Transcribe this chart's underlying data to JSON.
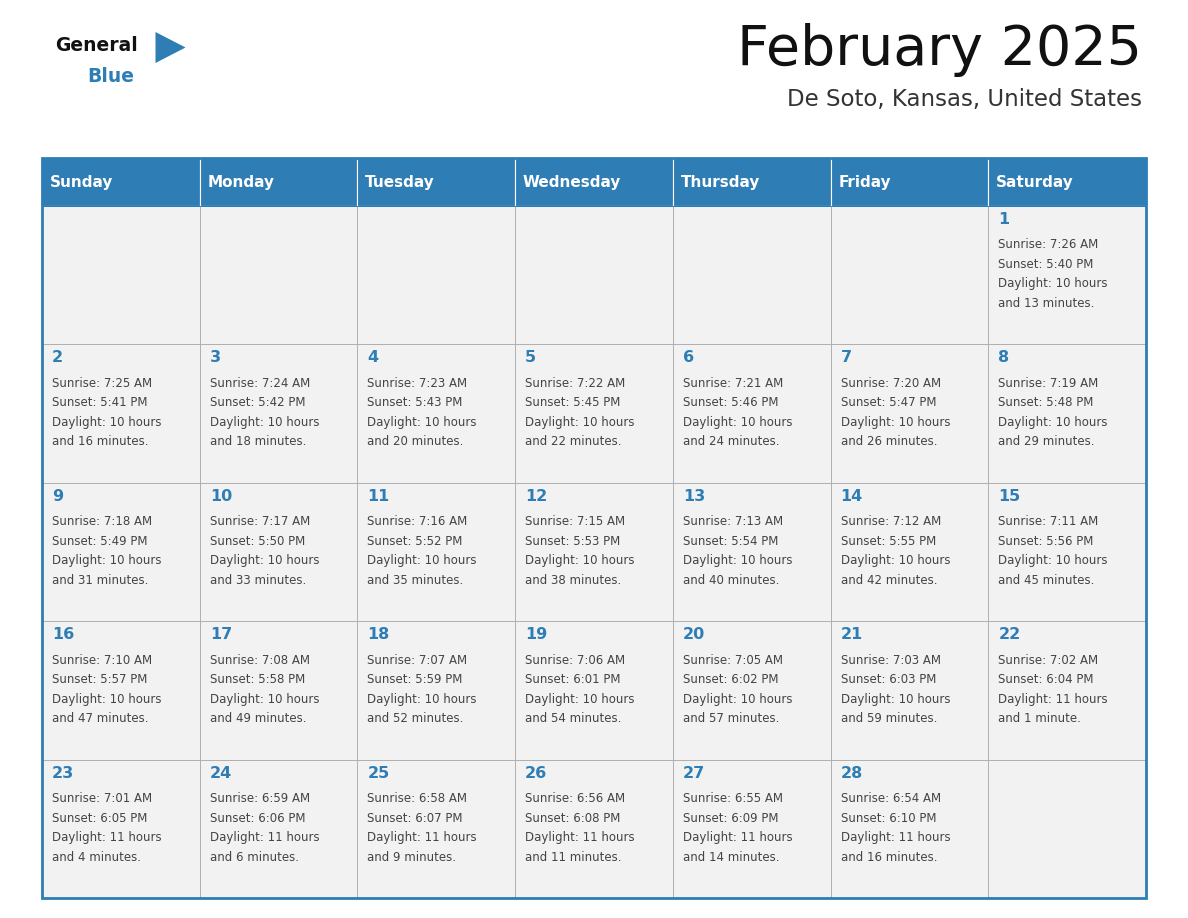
{
  "title": "February 2025",
  "subtitle": "De Soto, Kansas, United States",
  "days_of_week": [
    "Sunday",
    "Monday",
    "Tuesday",
    "Wednesday",
    "Thursday",
    "Friday",
    "Saturday"
  ],
  "header_bg": "#2E7DB5",
  "header_text": "#FFFFFF",
  "cell_bg": "#FFFFFF",
  "cell_alt_bg": "#F2F2F2",
  "cell_border": "#AAAAAA",
  "day_number_color": "#2E7DB5",
  "cell_text_color": "#444444",
  "title_color": "#111111",
  "subtitle_color": "#333333",
  "logo_general_color": "#111111",
  "logo_blue_color": "#2E7DB5",
  "weeks": [
    [
      {
        "day": null,
        "info": ""
      },
      {
        "day": null,
        "info": ""
      },
      {
        "day": null,
        "info": ""
      },
      {
        "day": null,
        "info": ""
      },
      {
        "day": null,
        "info": ""
      },
      {
        "day": null,
        "info": ""
      },
      {
        "day": 1,
        "info": "Sunrise: 7:26 AM\nSunset: 5:40 PM\nDaylight: 10 hours\nand 13 minutes."
      }
    ],
    [
      {
        "day": 2,
        "info": "Sunrise: 7:25 AM\nSunset: 5:41 PM\nDaylight: 10 hours\nand 16 minutes."
      },
      {
        "day": 3,
        "info": "Sunrise: 7:24 AM\nSunset: 5:42 PM\nDaylight: 10 hours\nand 18 minutes."
      },
      {
        "day": 4,
        "info": "Sunrise: 7:23 AM\nSunset: 5:43 PM\nDaylight: 10 hours\nand 20 minutes."
      },
      {
        "day": 5,
        "info": "Sunrise: 7:22 AM\nSunset: 5:45 PM\nDaylight: 10 hours\nand 22 minutes."
      },
      {
        "day": 6,
        "info": "Sunrise: 7:21 AM\nSunset: 5:46 PM\nDaylight: 10 hours\nand 24 minutes."
      },
      {
        "day": 7,
        "info": "Sunrise: 7:20 AM\nSunset: 5:47 PM\nDaylight: 10 hours\nand 26 minutes."
      },
      {
        "day": 8,
        "info": "Sunrise: 7:19 AM\nSunset: 5:48 PM\nDaylight: 10 hours\nand 29 minutes."
      }
    ],
    [
      {
        "day": 9,
        "info": "Sunrise: 7:18 AM\nSunset: 5:49 PM\nDaylight: 10 hours\nand 31 minutes."
      },
      {
        "day": 10,
        "info": "Sunrise: 7:17 AM\nSunset: 5:50 PM\nDaylight: 10 hours\nand 33 minutes."
      },
      {
        "day": 11,
        "info": "Sunrise: 7:16 AM\nSunset: 5:52 PM\nDaylight: 10 hours\nand 35 minutes."
      },
      {
        "day": 12,
        "info": "Sunrise: 7:15 AM\nSunset: 5:53 PM\nDaylight: 10 hours\nand 38 minutes."
      },
      {
        "day": 13,
        "info": "Sunrise: 7:13 AM\nSunset: 5:54 PM\nDaylight: 10 hours\nand 40 minutes."
      },
      {
        "day": 14,
        "info": "Sunrise: 7:12 AM\nSunset: 5:55 PM\nDaylight: 10 hours\nand 42 minutes."
      },
      {
        "day": 15,
        "info": "Sunrise: 7:11 AM\nSunset: 5:56 PM\nDaylight: 10 hours\nand 45 minutes."
      }
    ],
    [
      {
        "day": 16,
        "info": "Sunrise: 7:10 AM\nSunset: 5:57 PM\nDaylight: 10 hours\nand 47 minutes."
      },
      {
        "day": 17,
        "info": "Sunrise: 7:08 AM\nSunset: 5:58 PM\nDaylight: 10 hours\nand 49 minutes."
      },
      {
        "day": 18,
        "info": "Sunrise: 7:07 AM\nSunset: 5:59 PM\nDaylight: 10 hours\nand 52 minutes."
      },
      {
        "day": 19,
        "info": "Sunrise: 7:06 AM\nSunset: 6:01 PM\nDaylight: 10 hours\nand 54 minutes."
      },
      {
        "day": 20,
        "info": "Sunrise: 7:05 AM\nSunset: 6:02 PM\nDaylight: 10 hours\nand 57 minutes."
      },
      {
        "day": 21,
        "info": "Sunrise: 7:03 AM\nSunset: 6:03 PM\nDaylight: 10 hours\nand 59 minutes."
      },
      {
        "day": 22,
        "info": "Sunrise: 7:02 AM\nSunset: 6:04 PM\nDaylight: 11 hours\nand 1 minute."
      }
    ],
    [
      {
        "day": 23,
        "info": "Sunrise: 7:01 AM\nSunset: 6:05 PM\nDaylight: 11 hours\nand 4 minutes."
      },
      {
        "day": 24,
        "info": "Sunrise: 6:59 AM\nSunset: 6:06 PM\nDaylight: 11 hours\nand 6 minutes."
      },
      {
        "day": 25,
        "info": "Sunrise: 6:58 AM\nSunset: 6:07 PM\nDaylight: 11 hours\nand 9 minutes."
      },
      {
        "day": 26,
        "info": "Sunrise: 6:56 AM\nSunset: 6:08 PM\nDaylight: 11 hours\nand 11 minutes."
      },
      {
        "day": 27,
        "info": "Sunrise: 6:55 AM\nSunset: 6:09 PM\nDaylight: 11 hours\nand 14 minutes."
      },
      {
        "day": 28,
        "info": "Sunrise: 6:54 AM\nSunset: 6:10 PM\nDaylight: 11 hours\nand 16 minutes."
      },
      {
        "day": null,
        "info": ""
      }
    ]
  ]
}
